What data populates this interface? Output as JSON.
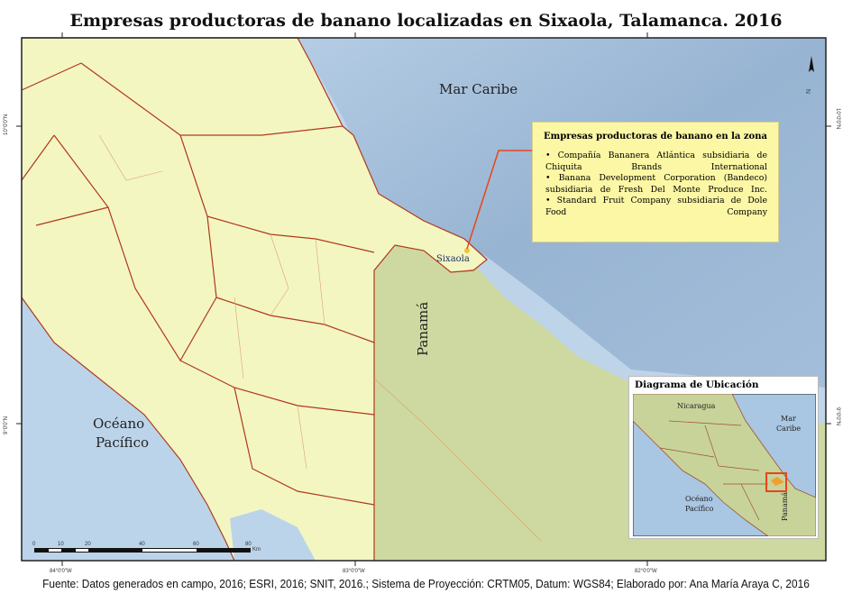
{
  "title": "Empresas productoras de banano localizadas en Sixaola, Talamanca. 2016",
  "labels": {
    "mar_caribe": "Mar Caribe",
    "oceano_pacifico_1": "Océano",
    "oceano_pacifico_2": "Pacífico",
    "panama": "Panamá",
    "sixaola": "Sixaola"
  },
  "legend": {
    "title": "Empresas productoras de banano en la zona",
    "items": [
      "• Compañía Bananera Atlántica subsidiaria de Chiquita Brands International",
      "• Banana Development Corporation (Bandeco) subsidiaria de Fresh Del Monte Produce Inc.",
      "• Standard Fruit Company subsidiaria de Dole Food Company"
    ]
  },
  "inset": {
    "title": "Diagrama de Ubicación",
    "labels": {
      "nicaragua": "Nicaragua",
      "mar": "Mar",
      "caribe": "Caribe",
      "oceano": "Océano",
      "pacifico": "Pacífico",
      "panama": "Panamá"
    }
  },
  "coordinates": {
    "lat_top": "10°0'0\"N",
    "lat_bottom": "9°0'0\"N",
    "lon_1": "84°0'0\"W",
    "lon_2": "83°0'0\"W",
    "lon_3": "82°0'0\"W"
  },
  "scale_bar": {
    "ticks": [
      "0",
      "10",
      "20",
      "40",
      "60",
      "80"
    ],
    "unit": "Km"
  },
  "north_arrow": "N",
  "source": "Fuente: Datos generados en campo, 2016; ESRI, 2016; SNIT, 2016.; Sistema de Proyección: CRTM05, Datum: WGS84; Elaborado por: Ana María Araya C, 2016",
  "colors": {
    "land_costa_rica": "#f4f6c2",
    "land_panama": "#cdd9a1",
    "sea": "#b9d2ea",
    "deep_sea": "#8fadcc",
    "boundary": "#b0391c",
    "highlight": "#e8451c"
  }
}
